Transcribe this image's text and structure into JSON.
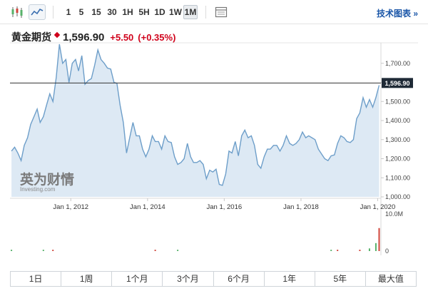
{
  "toolbar": {
    "ranges": [
      "1",
      "5",
      "15",
      "30",
      "1H",
      "5H",
      "1D",
      "1W",
      "1M"
    ],
    "active_range": "1M",
    "tech_chart_label": "技术图表 »"
  },
  "header": {
    "instrument": "黄金期货",
    "price": "1,596.90",
    "change": "+5.50",
    "change_pct": "(+0.35%)",
    "change_color": "#d0021b"
  },
  "watermark": {
    "cn": "英为财情",
    "en": "Investing.com"
  },
  "bottom_tabs": [
    "1日",
    "1周",
    "1个月",
    "3个月",
    "6个月",
    "1年",
    "5年",
    "最大值"
  ],
  "chart_data": {
    "type": "area",
    "x_tick_labels": [
      "Jan 1, 2012",
      "Jan 1, 2014",
      "Jan 1, 2016",
      "Jan 1, 2018",
      "Jan 1, 2020"
    ],
    "x_tick_dates": [
      "2012-01-01",
      "2014-01-01",
      "2016-01-01",
      "2018-01-01",
      "2020-01-01"
    ],
    "x_range": [
      "2010-06-01",
      "2020-02-01"
    ],
    "y_ticks": [
      1000,
      1100,
      1200,
      1300,
      1400,
      1500,
      1600,
      1700
    ],
    "y_tick_labels": [
      "1,000.00",
      "1,100.00",
      "1,200.00",
      "1,300.00",
      "1,400.00",
      "1,500.00",
      "1,600.00",
      "1,700.00"
    ],
    "ylim": [
      1000,
      1800
    ],
    "last_price": 1596.9,
    "last_price_label": "1,596.90",
    "grid": false,
    "line_color": "#6d9ec9",
    "fill_color": "#dde9f4",
    "series": [
      {
        "dates": [
          "2010-06",
          "2010-07",
          "2010-08",
          "2010-09",
          "2010-10",
          "2010-11",
          "2010-12",
          "2011-01",
          "2011-02",
          "2011-03",
          "2011-04",
          "2011-05",
          "2011-06",
          "2011-07",
          "2011-08",
          "2011-09",
          "2011-10",
          "2011-11",
          "2011-12",
          "2012-01",
          "2012-02",
          "2012-03",
          "2012-04",
          "2012-05",
          "2012-06",
          "2012-07",
          "2012-08",
          "2012-09",
          "2012-10",
          "2012-11",
          "2012-12",
          "2013-01",
          "2013-02",
          "2013-03",
          "2013-04",
          "2013-05",
          "2013-06",
          "2013-07",
          "2013-08",
          "2013-09",
          "2013-10",
          "2013-11",
          "2013-12",
          "2014-01",
          "2014-02",
          "2014-03",
          "2014-04",
          "2014-05",
          "2014-06",
          "2014-07",
          "2014-08",
          "2014-09",
          "2014-10",
          "2014-11",
          "2014-12",
          "2015-01",
          "2015-02",
          "2015-03",
          "2015-04",
          "2015-05",
          "2015-06",
          "2015-07",
          "2015-08",
          "2015-09",
          "2015-10",
          "2015-11",
          "2015-12",
          "2016-01",
          "2016-02",
          "2016-03",
          "2016-04",
          "2016-05",
          "2016-06",
          "2016-07",
          "2016-08",
          "2016-09",
          "2016-10",
          "2016-11",
          "2016-12",
          "2017-01",
          "2017-02",
          "2017-03",
          "2017-04",
          "2017-05",
          "2017-06",
          "2017-07",
          "2017-08",
          "2017-09",
          "2017-10",
          "2017-11",
          "2017-12",
          "2018-01",
          "2018-02",
          "2018-03",
          "2018-04",
          "2018-05",
          "2018-06",
          "2018-07",
          "2018-08",
          "2018-09",
          "2018-10",
          "2018-11",
          "2018-12",
          "2019-01",
          "2019-02",
          "2019-03",
          "2019-04",
          "2019-05",
          "2019-06",
          "2019-07",
          "2019-08",
          "2019-09",
          "2019-10",
          "2019-11",
          "2019-12",
          "2020-01"
        ],
        "values": [
          1240,
          1260,
          1230,
          1190,
          1270,
          1310,
          1380,
          1420,
          1460,
          1390,
          1420,
          1480,
          1540,
          1500,
          1625,
          1800,
          1700,
          1720,
          1600,
          1700,
          1720,
          1660,
          1740,
          1590,
          1610,
          1620,
          1690,
          1770,
          1720,
          1700,
          1675,
          1670,
          1600,
          1595,
          1480,
          1390,
          1230,
          1310,
          1390,
          1320,
          1320,
          1250,
          1210,
          1250,
          1320,
          1290,
          1290,
          1250,
          1320,
          1290,
          1285,
          1210,
          1170,
          1180,
          1200,
          1280,
          1210,
          1180,
          1180,
          1190,
          1170,
          1095,
          1140,
          1130,
          1145,
          1065,
          1060,
          1120,
          1240,
          1230,
          1290,
          1215,
          1320,
          1350,
          1310,
          1320,
          1270,
          1170,
          1150,
          1210,
          1250,
          1250,
          1270,
          1270,
          1240,
          1270,
          1320,
          1280,
          1270,
          1280,
          1300,
          1340,
          1310,
          1320,
          1310,
          1300,
          1250,
          1225,
          1200,
          1190,
          1215,
          1220,
          1280,
          1320,
          1310,
          1290,
          1285,
          1300,
          1410,
          1440,
          1520,
          1470,
          1510,
          1470,
          1520,
          1585
        ]
      }
    ],
    "volume": {
      "y_tick_labels": [
        "10.0M",
        "0"
      ],
      "bars": [
        {
          "date": "2010-06",
          "value": 0.3,
          "color": "#57b26a"
        },
        {
          "date": "2011-04",
          "value": 0.3,
          "color": "#57b26a"
        },
        {
          "date": "2011-07",
          "value": 0.3,
          "color": "#d0453b"
        },
        {
          "date": "2014-03",
          "value": 0.3,
          "color": "#d0453b"
        },
        {
          "date": "2014-10",
          "value": 0.3,
          "color": "#57b26a"
        },
        {
          "date": "2018-10",
          "value": 0.3,
          "color": "#57b26a"
        },
        {
          "date": "2018-12",
          "value": 0.3,
          "color": "#d0453b"
        },
        {
          "date": "2019-07",
          "value": 0.3,
          "color": "#d0453b"
        },
        {
          "date": "2019-10",
          "value": 0.6,
          "color": "#57b26a"
        },
        {
          "date": "2019-12",
          "value": 1.8,
          "color": "#57b26a"
        },
        {
          "date": "2020-01",
          "value": 5.2,
          "color": "#d0453b"
        }
      ]
    }
  }
}
